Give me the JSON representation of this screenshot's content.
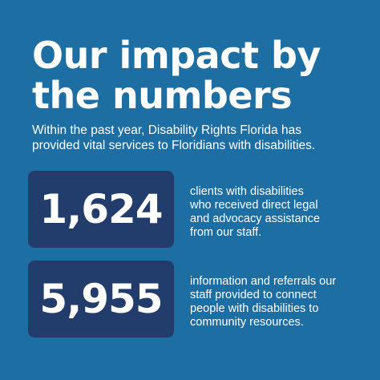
{
  "colors": {
    "background": "#1d6ea3",
    "stat_box": "#223c6b",
    "text": "#ffffff"
  },
  "headline": {
    "line1": "Our impact by",
    "line2": "the numbers"
  },
  "intro": {
    "line1": "Within the past year, Disability Rights Florida has",
    "line2": "provided vital services to Floridians with disabilities."
  },
  "stats": [
    {
      "number": "1,624",
      "description_lines": [
        "clients with disabilities",
        "who received direct legal",
        "and advocacy assistance",
        "from our staff."
      ]
    },
    {
      "number": "5,955",
      "description_lines": [
        "information and referrals our",
        "staff provided to connect",
        "people with disabilities to",
        "community resources."
      ]
    }
  ]
}
